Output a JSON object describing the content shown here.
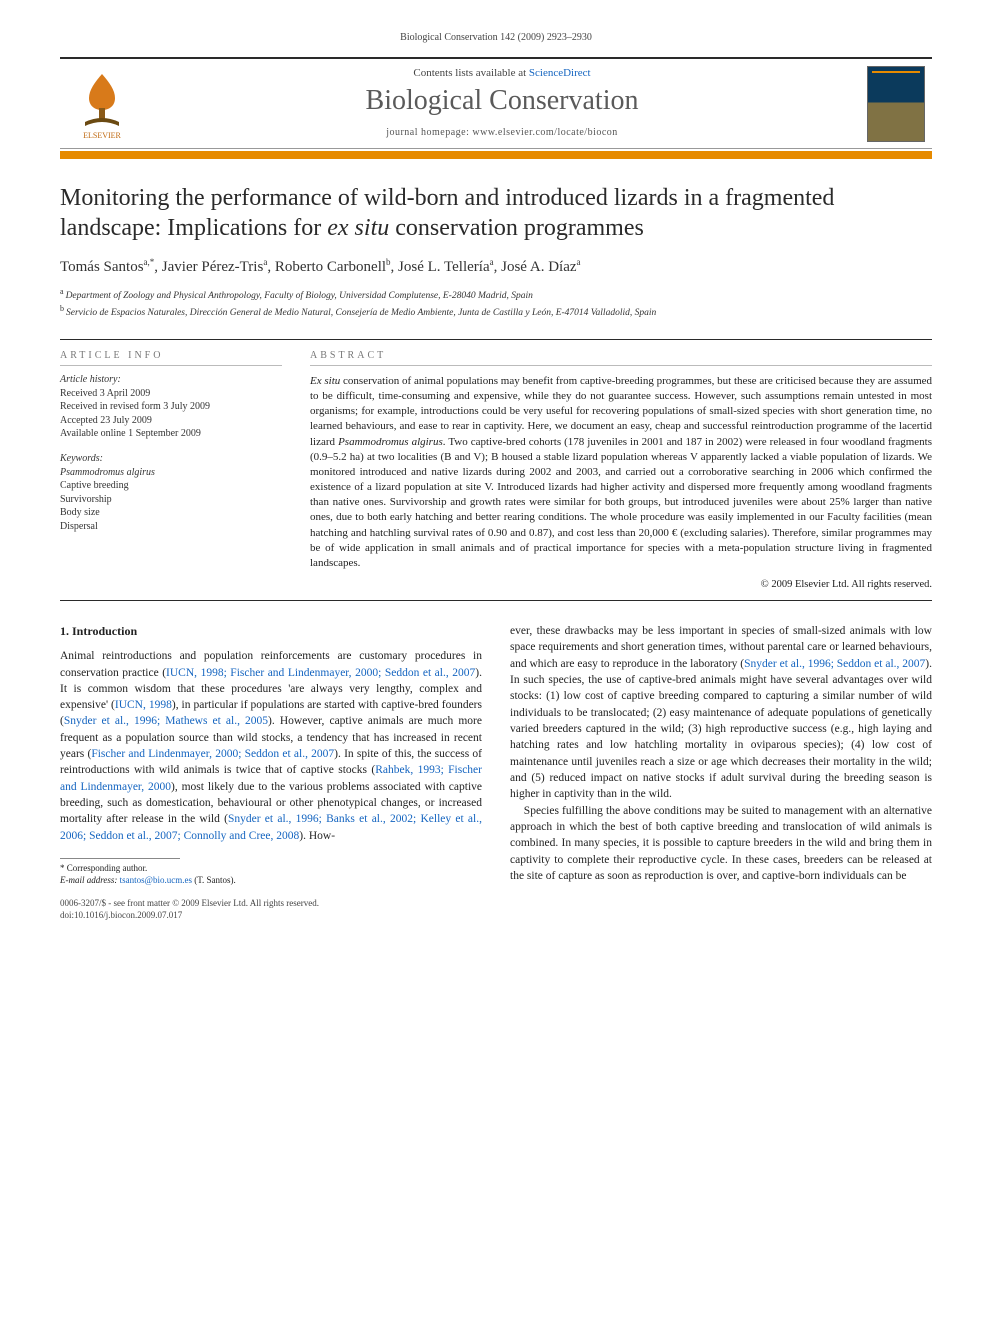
{
  "running_head": "Biological Conservation 142 (2009) 2923–2930",
  "masthead": {
    "contents_prefix": "Contents lists available at ",
    "contents_link": "ScienceDirect",
    "journal": "Biological Conservation",
    "homepage": "journal homepage: www.elsevier.com/locate/biocon",
    "publisher_logo_alt": "ELSEVIER",
    "cover_alt": "Biological Conservation cover"
  },
  "colors": {
    "accent": "#e68a00",
    "link": "#1565c0",
    "rule": "#2a2a2a",
    "text": "#1a1a1a"
  },
  "title": {
    "pre_ital": "Monitoring the performance of wild-born and introduced lizards in a fragmented landscape: Implications for ",
    "ital": "ex situ",
    "post_ital": " conservation programmes"
  },
  "authors_html": "Tomás Santos<sup>a,*</sup>, Javier Pérez-Tris<sup>a</sup>, Roberto Carbonell<sup>b</sup>, José L. Tellería<sup>a</sup>, José A. Díaz<sup>a</sup>",
  "affiliations": [
    {
      "key": "a",
      "text": "Department of Zoology and Physical Anthropology, Faculty of Biology, Universidad Complutense, E-28040 Madrid, Spain"
    },
    {
      "key": "b",
      "text": "Servicio de Espacios Naturales, Dirección General de Medio Natural, Consejería de Medio Ambiente, Junta de Castilla y León, E-47014 Valladolid, Spain"
    }
  ],
  "article_info": {
    "head": "ARTICLE INFO",
    "history_head": "Article history:",
    "history": [
      "Received 3 April 2009",
      "Received in revised form 3 July 2009",
      "Accepted 23 July 2009",
      "Available online 1 September 2009"
    ],
    "keywords_head": "Keywords:",
    "keywords": [
      "Psammodromus algirus",
      "Captive breeding",
      "Survivorship",
      "Body size",
      "Dispersal"
    ]
  },
  "abstract": {
    "head": "ABSTRACT",
    "seg1": "Ex situ",
    "seg2": " conservation of animal populations may benefit from captive-breeding programmes, but these are criticised because they are assumed to be difficult, time-consuming and expensive, while they do not guarantee success. However, such assumptions remain untested in most organisms; for example, introductions could be very useful for recovering populations of small-sized species with short generation time, no learned behaviours, and ease to rear in captivity. Here, we document an easy, cheap and successful reintroduction programme of the lacertid lizard ",
    "seg3": "Psammodromus algirus",
    "seg4": ". Two captive-bred cohorts (178 juveniles in 2001 and 187 in 2002) were released in four woodland fragments (0.9–5.2 ha) at two localities (B and V); B housed a stable lizard population whereas V apparently lacked a viable population of lizards. We monitored introduced and native lizards during 2002 and 2003, and carried out a corroborative searching in 2006 which confirmed the existence of a lizard population at site V. Introduced lizards had higher activity and dispersed more frequently among woodland fragments than native ones. Survivorship and growth rates were similar for both groups, but introduced juveniles were about 25% larger than native ones, due to both early hatching and better rearing conditions. The whole procedure was easily implemented in our Faculty facilities (mean hatching and hatchling survival rates of 0.90 and 0.87), and cost less than 20,000 € (excluding salaries). Therefore, similar programmes may be of wide application in small animals and of practical importance for species with a meta-population structure living in fragmented landscapes.",
    "copyright": "© 2009 Elsevier Ltd. All rights reserved."
  },
  "body": {
    "section_head": "1. Introduction",
    "p1_a": "Animal reintroductions and population reinforcements are customary procedures in conservation practice (",
    "ref1": "IUCN, 1998; Fischer and Lindenmayer, 2000; Seddon et al., 2007",
    "p1_b": "). It is common wisdom that these procedures 'are always very lengthy, complex and expensive' (",
    "ref2": "IUCN, 1998",
    "p1_c": "), in particular if populations are started with captive-bred founders (",
    "ref3": "Snyder et al., 1996; Mathews et al., 2005",
    "p1_d": "). However, captive animals are much more frequent as a population source than wild stocks, a tendency that has increased in recent years (",
    "ref4": "Fischer and Lindenmayer, 2000; Seddon et al., 2007",
    "p1_e": "). In spite of this, the success of reintroductions with wild animals is twice that of captive stocks (",
    "ref5": "Rahbek, 1993; Fischer and Lindenmayer, 2000",
    "p1_f": "), most likely due to the various problems associated with captive breeding, such as domestication, behavioural or other phenotypical changes, or increased mortality after release in the wild (",
    "ref6": "Snyder et al., 1996; Banks et al., 2002; Kelley et al., 2006; Seddon et al., 2007; Connolly and Cree, 2008",
    "p1_g": "). How",
    "p1_h": "ever, these drawbacks may be less important in species of small-sized animals with low space requirements and short generation times, without parental care or learned behaviours, and which are easy to reproduce in the laboratory (",
    "ref7": "Snyder et al., 1996; Seddon et al., 2007",
    "p1_i": "). In such species, the use of captive-bred animals might have several advantages over wild stocks: (1) low cost of captive breeding compared to capturing a similar number of wild individuals to be translocated; (2) easy maintenance of adequate populations of genetically varied breeders captured in the wild; (3) high reproductive success (e.g., high laying and hatching rates and low hatchling mortality in oviparous species); (4) low cost of maintenance until juveniles reach a size or age which decreases their mortality in the wild; and (5) reduced impact on native stocks if adult survival during the breeding season is higher in captivity than in the wild.",
    "p2": "Species fulfilling the above conditions may be suited to management with an alternative approach in which the best of both captive breeding and translocation of wild animals is combined. In many species, it is possible to capture breeders in the wild and bring them in captivity to complete their reproductive cycle. In these cases, breeders can be released at the site of capture as soon as reproduction is over, and captive-born individuals can be"
  },
  "footnotes": {
    "corr": "* Corresponding author.",
    "email_label": "E-mail address:",
    "email": "tsantos@bio.ucm.es",
    "email_who": " (T. Santos)."
  },
  "bottom": {
    "line1": "0006-3207/$ - see front matter © 2009 Elsevier Ltd. All rights reserved.",
    "line2": "doi:10.1016/j.biocon.2009.07.017"
  }
}
